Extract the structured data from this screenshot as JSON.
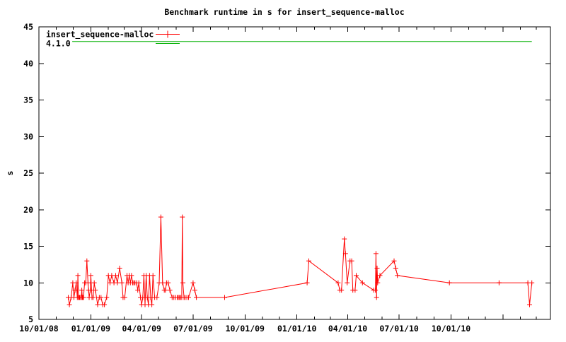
{
  "chart_data": {
    "type": "line",
    "title": "Benchmark runtime in s for insert_sequence-malloc",
    "xlabel": "",
    "ylabel": "s",
    "ylim": [
      5,
      45
    ],
    "yticks": [
      5,
      10,
      15,
      20,
      25,
      30,
      35,
      40,
      45
    ],
    "xlim": [
      "10/01/08",
      "03/26/11"
    ],
    "xtick_labels": [
      "10/01/08",
      "01/01/09",
      "04/01/09",
      "07/01/09",
      "10/01/09",
      "01/01/10",
      "04/01/10",
      "07/01/10",
      "10/01/10"
    ],
    "x_minor_tick_interval": "month",
    "x_major_tick_interval": "3 months",
    "grid": false,
    "legend_position": "top-left-inside",
    "frame_color": "#000000",
    "background_color": "#ffffff",
    "series": [
      {
        "name": "insert_sequence-malloc",
        "color": "#ff0000",
        "marker": "plus",
        "points": [
          [
            "11/22/08",
            8
          ],
          [
            "11/24/08",
            7
          ],
          [
            "11/27/08",
            8
          ],
          [
            "11/30/08",
            10
          ],
          [
            "12/02/08",
            8
          ],
          [
            "12/04/08",
            9
          ],
          [
            "12/06/08",
            10
          ],
          [
            "12/08/08",
            8
          ],
          [
            "12/09/08",
            11
          ],
          [
            "12/10/08",
            8
          ],
          [
            "12/11/08",
            8
          ],
          [
            "12/12/08",
            8
          ],
          [
            "12/14/08",
            8
          ],
          [
            "12/15/08",
            8
          ],
          [
            "12/16/08",
            9
          ],
          [
            "12/17/08",
            8
          ],
          [
            "12/18/08",
            8
          ],
          [
            "12/19/08",
            8
          ],
          [
            "12/21/08",
            10
          ],
          [
            "12/23/08",
            10
          ],
          [
            "12/25/08",
            13
          ],
          [
            "12/27/08",
            10
          ],
          [
            "12/28/08",
            9
          ],
          [
            "12/29/08",
            8
          ],
          [
            "12/31/08",
            9
          ],
          [
            "01/01/09",
            11
          ],
          [
            "01/03/09",
            8
          ],
          [
            "01/05/09",
            8
          ],
          [
            "01/07/09",
            10
          ],
          [
            "01/09/09",
            9
          ],
          [
            "01/13/09",
            7
          ],
          [
            "01/16/09",
            8
          ],
          [
            "01/19/09",
            8
          ],
          [
            "01/22/09",
            7
          ],
          [
            "01/25/09",
            7
          ],
          [
            "01/29/09",
            8
          ],
          [
            "02/01/09",
            11
          ],
          [
            "02/04/09",
            10
          ],
          [
            "02/07/09",
            11
          ],
          [
            "02/11/09",
            10
          ],
          [
            "02/14/09",
            11
          ],
          [
            "02/17/09",
            10
          ],
          [
            "02/21/09",
            12
          ],
          [
            "02/25/09",
            10
          ],
          [
            "02/27/09",
            8
          ],
          [
            "03/02/09",
            8
          ],
          [
            "03/06/09",
            11
          ],
          [
            "03/08/09",
            10
          ],
          [
            "03/10/09",
            11
          ],
          [
            "03/12/09",
            10
          ],
          [
            "03/14/09",
            11
          ],
          [
            "03/16/09",
            10
          ],
          [
            "03/18/09",
            10
          ],
          [
            "03/20/09",
            10
          ],
          [
            "03/23/09",
            10
          ],
          [
            "03/25/09",
            9
          ],
          [
            "03/27/09",
            10
          ],
          [
            "03/30/09",
            8
          ],
          [
            "04/01/09",
            7
          ],
          [
            "04/03/09",
            8
          ],
          [
            "04/05/09",
            11
          ],
          [
            "04/07/09",
            7
          ],
          [
            "04/09/09",
            11
          ],
          [
            "04/11/09",
            8
          ],
          [
            "04/13/09",
            7
          ],
          [
            "04/15/09",
            11
          ],
          [
            "04/17/09",
            8
          ],
          [
            "04/19/09",
            7
          ],
          [
            "04/21/09",
            11
          ],
          [
            "04/24/09",
            8
          ],
          [
            "04/28/09",
            8
          ],
          [
            "05/02/09",
            10
          ],
          [
            "05/05/09",
            19
          ],
          [
            "05/08/09",
            10
          ],
          [
            "05/11/09",
            9
          ],
          [
            "05/13/09",
            9
          ],
          [
            "05/15/09",
            10
          ],
          [
            "05/18/09",
            10
          ],
          [
            "05/21/09",
            9
          ],
          [
            "05/25/09",
            8
          ],
          [
            "05/28/09",
            8
          ],
          [
            "05/31/09",
            8
          ],
          [
            "06/03/09",
            8
          ],
          [
            "06/05/09",
            8
          ],
          [
            "06/07/09",
            8
          ],
          [
            "06/09/09",
            8
          ],
          [
            "06/11/09",
            8
          ],
          [
            "06/12/09",
            19
          ],
          [
            "06/13/09",
            10
          ],
          [
            "06/15/09",
            8
          ],
          [
            "06/17/09",
            8
          ],
          [
            "06/20/09",
            8
          ],
          [
            "06/23/09",
            8
          ],
          [
            "07/01/09",
            10
          ],
          [
            "07/04/09",
            9
          ],
          [
            "07/07/09",
            8
          ],
          [
            "08/26/09",
            8
          ],
          [
            "01/19/10",
            10
          ],
          [
            "01/22/10",
            13
          ],
          [
            "03/15/10",
            10
          ],
          [
            "03/18/10",
            9
          ],
          [
            "03/21/10",
            9
          ],
          [
            "03/26/10",
            16
          ],
          [
            "03/28/10",
            14
          ],
          [
            "03/31/10",
            10
          ],
          [
            "04/05/10",
            13
          ],
          [
            "04/08/10",
            13
          ],
          [
            "04/10/10",
            9
          ],
          [
            "04/14/10",
            9
          ],
          [
            "04/16/10",
            11
          ],
          [
            "04/27/10",
            10
          ],
          [
            "05/17/10",
            9
          ],
          [
            "05/20/10",
            9
          ],
          [
            "05/21/10",
            14
          ],
          [
            "05/22/10",
            8
          ],
          [
            "05/23/10",
            12
          ],
          [
            "05/24/10",
            10
          ],
          [
            "05/28/10",
            11
          ],
          [
            "06/22/10",
            13
          ],
          [
            "06/25/10",
            12
          ],
          [
            "06/28/10",
            11
          ],
          [
            "09/28/10",
            10
          ],
          [
            "12/25/10",
            10
          ],
          [
            "02/14/11",
            10
          ],
          [
            "02/17/11",
            7
          ],
          [
            "02/21/11",
            10
          ]
        ]
      },
      {
        "name": "4.1.0",
        "color": "#00b000",
        "marker": "none",
        "points": [
          [
            "11/29/08",
            43
          ],
          [
            "02/21/11",
            43
          ]
        ]
      }
    ]
  }
}
